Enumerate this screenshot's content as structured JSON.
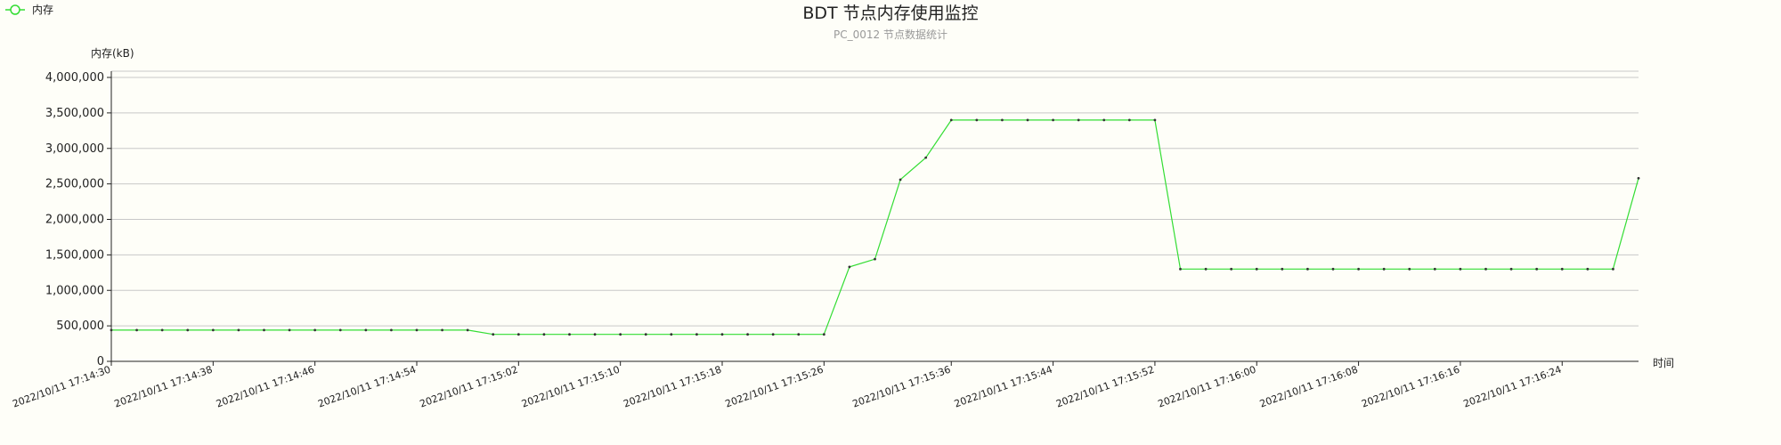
{
  "chart_data": {
    "type": "line",
    "title": "BDT 节点内存使用监控",
    "subtitle": "PC_0012 节点数据统计",
    "ylabel": "内存(kB)",
    "xlabel": "时间",
    "ylim": [
      0,
      4000000
    ],
    "yticks": [
      "0",
      "500,000",
      "1,000,000",
      "1,500,000",
      "2,000,000",
      "2,500,000",
      "3,000,000",
      "3,500,000",
      "4,000,000"
    ],
    "ytick_values": [
      0,
      500000,
      1000000,
      1500000,
      2000000,
      2500000,
      3000000,
      3500000,
      4000000
    ],
    "grid": true,
    "legend_position": "top-left",
    "line_color": "#33dd33",
    "series": [
      {
        "name": "内存",
        "x": [
          "2022/10/11 17:14:30",
          "2022/10/11 17:14:32",
          "2022/10/11 17:14:34",
          "2022/10/11 17:14:36",
          "2022/10/11 17:14:38",
          "2022/10/11 17:14:40",
          "2022/10/11 17:14:42",
          "2022/10/11 17:14:44",
          "2022/10/11 17:14:46",
          "2022/10/11 17:14:48",
          "2022/10/11 17:14:50",
          "2022/10/11 17:14:52",
          "2022/10/11 17:14:54",
          "2022/10/11 17:14:56",
          "2022/10/11 17:14:58",
          "2022/10/11 17:15:00",
          "2022/10/11 17:15:02",
          "2022/10/11 17:15:04",
          "2022/10/11 17:15:06",
          "2022/10/11 17:15:08",
          "2022/10/11 17:15:10",
          "2022/10/11 17:15:12",
          "2022/10/11 17:15:14",
          "2022/10/11 17:15:16",
          "2022/10/11 17:15:18",
          "2022/10/11 17:15:20",
          "2022/10/11 17:15:22",
          "2022/10/11 17:15:24",
          "2022/10/11 17:15:26",
          "2022/10/11 17:15:28",
          "2022/10/11 17:15:30",
          "2022/10/11 17:15:32",
          "2022/10/11 17:15:34",
          "2022/10/11 17:15:36",
          "2022/10/11 17:15:38",
          "2022/10/11 17:15:40",
          "2022/10/11 17:15:42",
          "2022/10/11 17:15:44",
          "2022/10/11 17:15:46",
          "2022/10/11 17:15:48",
          "2022/10/11 17:15:50",
          "2022/10/11 17:15:52",
          "2022/10/11 17:15:54",
          "2022/10/11 17:15:56",
          "2022/10/11 17:15:58",
          "2022/10/11 17:16:00",
          "2022/10/11 17:16:02",
          "2022/10/11 17:16:04",
          "2022/10/11 17:16:06",
          "2022/10/11 17:16:08",
          "2022/10/11 17:16:10",
          "2022/10/11 17:16:12",
          "2022/10/11 17:16:14",
          "2022/10/11 17:16:16",
          "2022/10/11 17:16:18",
          "2022/10/11 17:16:20",
          "2022/10/11 17:16:22",
          "2022/10/11 17:16:24",
          "2022/10/11 17:16:26",
          "2022/10/11 17:16:28",
          "2022/10/11 17:16:30"
        ],
        "values": [
          440000,
          440000,
          440000,
          440000,
          440000,
          440000,
          440000,
          440000,
          440000,
          440000,
          440000,
          440000,
          440000,
          440000,
          440000,
          380000,
          380000,
          380000,
          380000,
          380000,
          380000,
          380000,
          380000,
          380000,
          380000,
          380000,
          380000,
          380000,
          380000,
          1330000,
          1440000,
          2560000,
          2870000,
          3400000,
          3400000,
          3400000,
          3400000,
          3400000,
          3400000,
          3400000,
          3400000,
          3400000,
          1300000,
          1300000,
          1300000,
          1300000,
          1300000,
          1300000,
          1300000,
          1300000,
          1300000,
          1300000,
          1300000,
          1300000,
          1300000,
          1300000,
          1300000,
          1300000,
          1300000,
          1300000,
          2580000
        ]
      }
    ],
    "xtick_labels": [
      "2022/10/11 17:14:30",
      "2022/10/11 17:14:38",
      "2022/10/11 17:14:46",
      "2022/10/11 17:14:54",
      "2022/10/11 17:15:02",
      "2022/10/11 17:15:10",
      "2022/10/11 17:15:18",
      "2022/10/11 17:15:26",
      "2022/10/11 17:15:36",
      "2022/10/11 17:15:44",
      "2022/10/11 17:15:52",
      "2022/10/11 17:16:00",
      "2022/10/11 17:16:08",
      "2022/10/11 17:16:16",
      "2022/10/11 17:16:24"
    ],
    "xtick_point_index": [
      0,
      4,
      8,
      12,
      16,
      20,
      24,
      28,
      33,
      37,
      41,
      45,
      49,
      53,
      57
    ]
  }
}
